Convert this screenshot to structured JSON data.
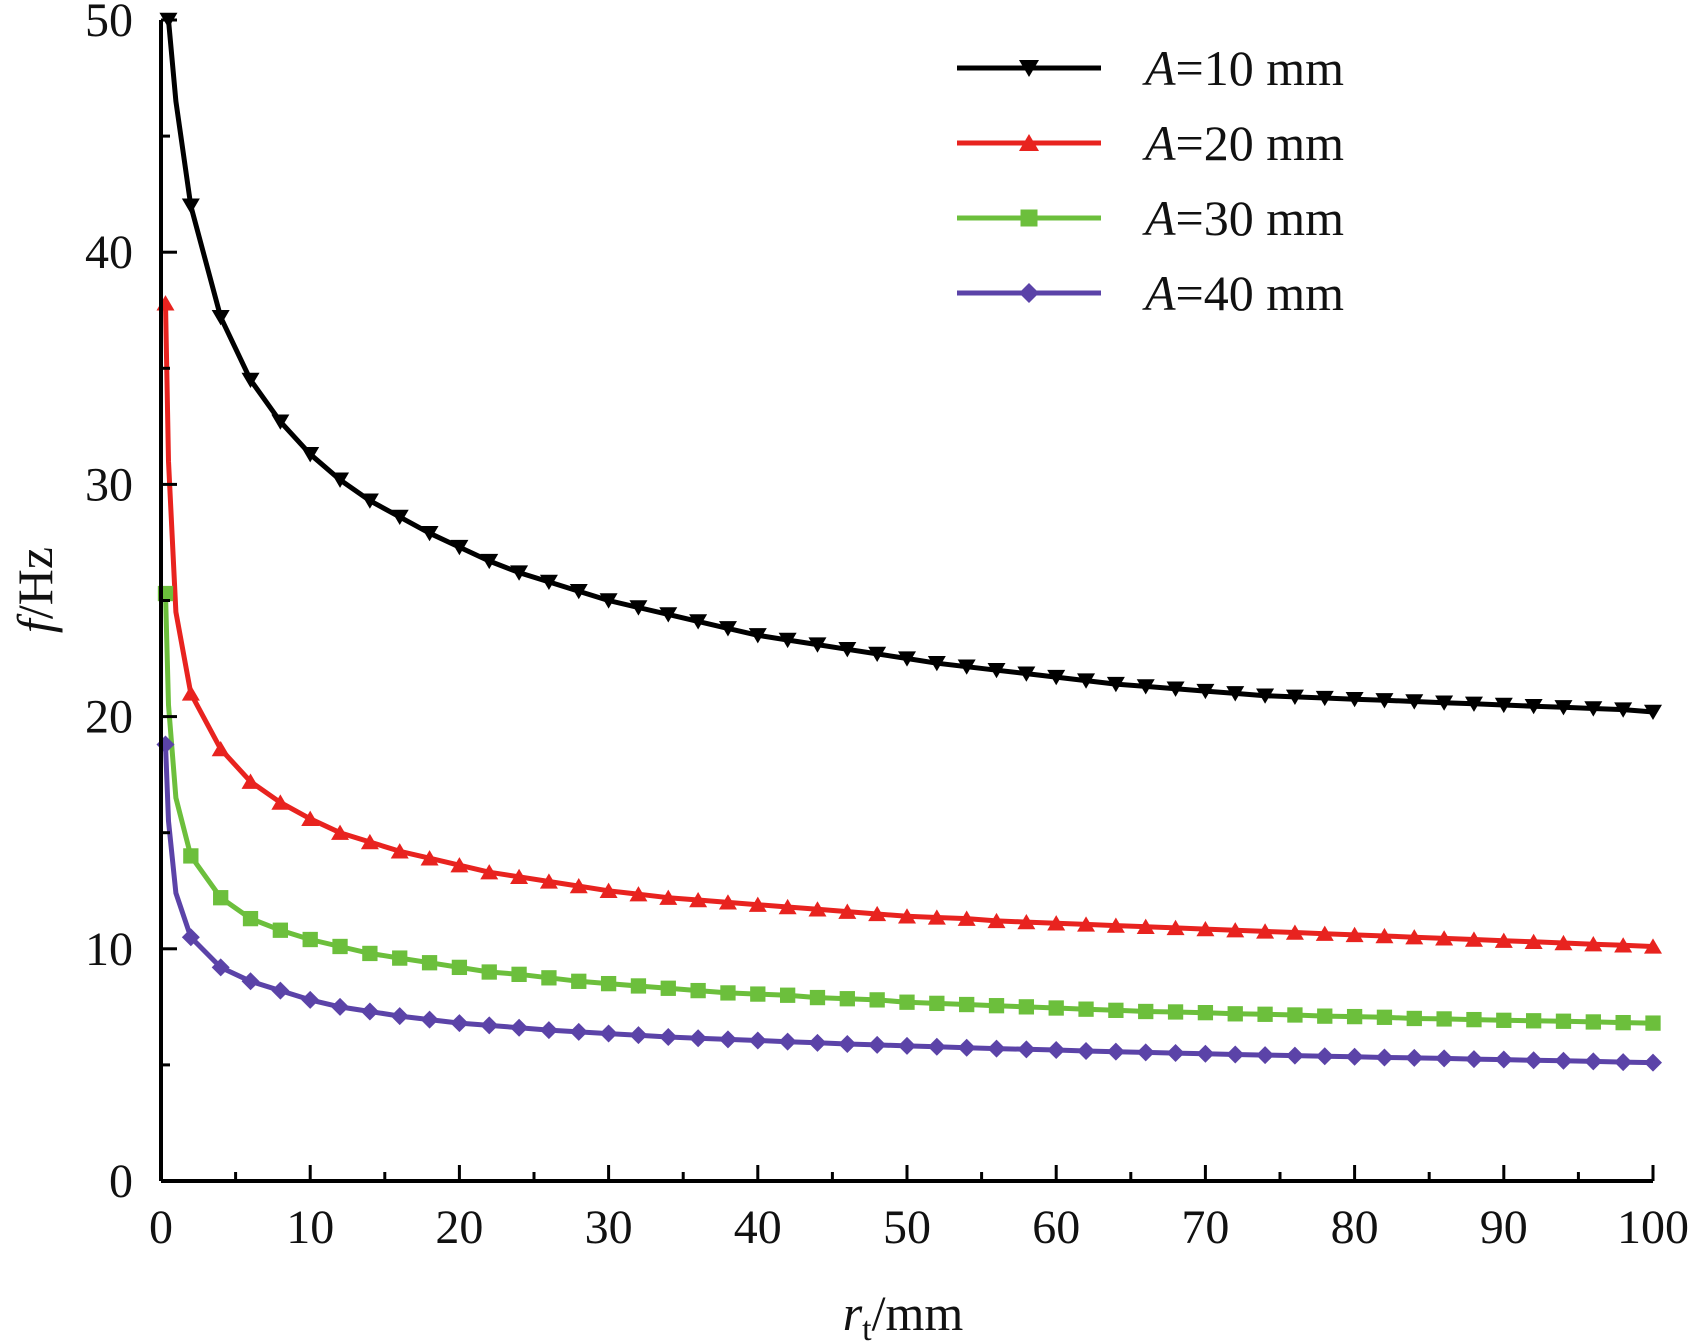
{
  "chart_data": {
    "type": "line",
    "title": "",
    "xlabel": {
      "main": "r",
      "sub": "t",
      "unit": "/mm"
    },
    "ylabel": {
      "italic": "f",
      "unit": "/Hz"
    },
    "xlim": [
      0,
      100
    ],
    "ylim": [
      0,
      50
    ],
    "x_ticks": [
      "0",
      "10",
      "20",
      "30",
      "40",
      "50",
      "60",
      "70",
      "80",
      "90",
      "100"
    ],
    "y_ticks": [
      "0",
      "10",
      "20",
      "30",
      "40",
      "50"
    ],
    "grid": false,
    "legend_position": "top-right",
    "series": [
      {
        "name": "A=10 mm",
        "name_italic": "A",
        "name_rest": "=10 mm",
        "color": "#000000",
        "marker": "triangle-down",
        "x": [
          0.5,
          1,
          2,
          4,
          6,
          8,
          10,
          12,
          14,
          16,
          18,
          20,
          22,
          24,
          26,
          28,
          30,
          32,
          34,
          36,
          38,
          40,
          42,
          44,
          46,
          48,
          50,
          52,
          54,
          56,
          58,
          60,
          62,
          64,
          66,
          68,
          70,
          72,
          74,
          76,
          78,
          80,
          82,
          84,
          86,
          88,
          90,
          92,
          94,
          96,
          98,
          100
        ],
        "values": [
          50,
          46.5,
          42.0,
          37.2,
          34.5,
          32.7,
          31.3,
          30.2,
          29.3,
          28.6,
          27.9,
          27.3,
          26.7,
          26.2,
          25.8,
          25.4,
          25.0,
          24.7,
          24.4,
          24.1,
          23.8,
          23.5,
          23.3,
          23.1,
          22.9,
          22.7,
          22.5,
          22.3,
          22.15,
          22.0,
          21.85,
          21.7,
          21.55,
          21.4,
          21.3,
          21.2,
          21.1,
          21.0,
          20.9,
          20.85,
          20.8,
          20.75,
          20.7,
          20.65,
          20.6,
          20.55,
          20.5,
          20.45,
          20.4,
          20.35,
          20.3,
          20.2
        ]
      },
      {
        "name": "A=20 mm",
        "name_italic": "A",
        "name_rest": "=20 mm",
        "color": "#e8231f",
        "marker": "triangle-up",
        "x": [
          0.3,
          0.5,
          1,
          2,
          4,
          6,
          8,
          10,
          12,
          14,
          16,
          18,
          20,
          22,
          24,
          26,
          28,
          30,
          32,
          34,
          36,
          38,
          40,
          42,
          44,
          46,
          48,
          50,
          52,
          54,
          56,
          58,
          60,
          62,
          64,
          66,
          68,
          70,
          72,
          74,
          76,
          78,
          80,
          82,
          84,
          86,
          88,
          90,
          92,
          94,
          96,
          98,
          100
        ],
        "values": [
          37.8,
          31.0,
          24.5,
          21.0,
          18.6,
          17.2,
          16.3,
          15.6,
          15.0,
          14.6,
          14.2,
          13.9,
          13.6,
          13.3,
          13.1,
          12.9,
          12.7,
          12.5,
          12.35,
          12.2,
          12.1,
          12.0,
          11.9,
          11.8,
          11.7,
          11.6,
          11.5,
          11.4,
          11.35,
          11.3,
          11.2,
          11.15,
          11.1,
          11.05,
          11.0,
          10.95,
          10.9,
          10.85,
          10.8,
          10.75,
          10.7,
          10.65,
          10.6,
          10.55,
          10.5,
          10.45,
          10.4,
          10.35,
          10.3,
          10.25,
          10.2,
          10.15,
          10.1
        ]
      },
      {
        "name": "A=30 mm",
        "name_italic": "A",
        "name_rest": "=30 mm",
        "color": "#6cbf3c",
        "marker": "square",
        "x": [
          0.3,
          0.5,
          1,
          2,
          4,
          6,
          8,
          10,
          12,
          14,
          16,
          18,
          20,
          22,
          24,
          26,
          28,
          30,
          32,
          34,
          36,
          38,
          40,
          42,
          44,
          46,
          48,
          50,
          52,
          54,
          56,
          58,
          60,
          62,
          64,
          66,
          68,
          70,
          72,
          74,
          76,
          78,
          80,
          82,
          84,
          86,
          88,
          90,
          92,
          94,
          96,
          98,
          100
        ],
        "values": [
          25.3,
          20.5,
          16.5,
          14.0,
          12.2,
          11.3,
          10.8,
          10.4,
          10.1,
          9.8,
          9.6,
          9.4,
          9.2,
          9.0,
          8.9,
          8.75,
          8.6,
          8.5,
          8.4,
          8.3,
          8.2,
          8.1,
          8.05,
          8.0,
          7.9,
          7.85,
          7.8,
          7.7,
          7.65,
          7.6,
          7.55,
          7.5,
          7.45,
          7.4,
          7.35,
          7.3,
          7.28,
          7.25,
          7.2,
          7.18,
          7.15,
          7.1,
          7.08,
          7.05,
          7.0,
          6.98,
          6.95,
          6.92,
          6.9,
          6.88,
          6.85,
          6.82,
          6.8
        ]
      },
      {
        "name": "A=40 mm",
        "name_italic": "A",
        "name_rest": "=40 mm",
        "color": "#5b43a8",
        "marker": "diamond",
        "x": [
          0.3,
          0.5,
          1,
          2,
          4,
          6,
          8,
          10,
          12,
          14,
          16,
          18,
          20,
          22,
          24,
          26,
          28,
          30,
          32,
          34,
          36,
          38,
          40,
          42,
          44,
          46,
          48,
          50,
          52,
          54,
          56,
          58,
          60,
          62,
          64,
          66,
          68,
          70,
          72,
          74,
          76,
          78,
          80,
          82,
          84,
          86,
          88,
          90,
          92,
          94,
          96,
          98,
          100
        ],
        "values": [
          18.8,
          15.5,
          12.4,
          10.5,
          9.2,
          8.6,
          8.2,
          7.8,
          7.5,
          7.3,
          7.1,
          6.95,
          6.8,
          6.7,
          6.6,
          6.5,
          6.42,
          6.35,
          6.28,
          6.2,
          6.15,
          6.1,
          6.05,
          6.0,
          5.95,
          5.9,
          5.86,
          5.82,
          5.78,
          5.74,
          5.7,
          5.67,
          5.64,
          5.6,
          5.57,
          5.54,
          5.51,
          5.48,
          5.45,
          5.42,
          5.4,
          5.37,
          5.35,
          5.32,
          5.3,
          5.28,
          5.25,
          5.23,
          5.2,
          5.18,
          5.15,
          5.12,
          5.1
        ]
      }
    ]
  }
}
